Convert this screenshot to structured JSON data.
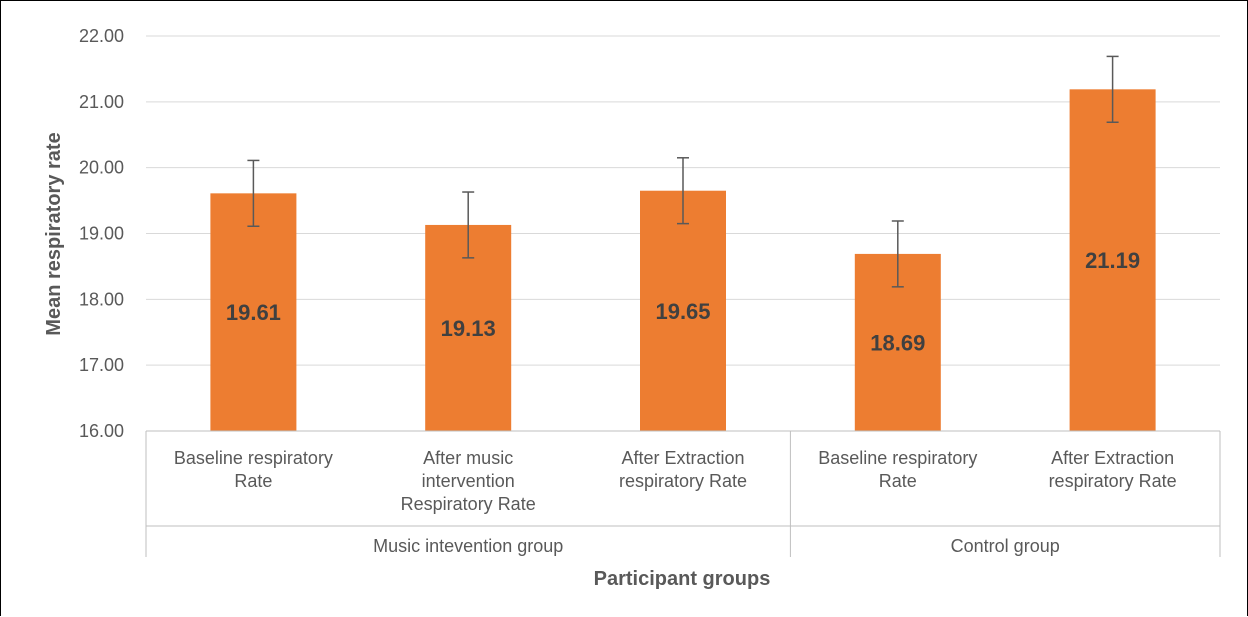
{
  "chart_data": {
    "type": "bar",
    "title": "",
    "xlabel": "Participant groups",
    "ylabel": "Mean respiratory rate",
    "ylim": [
      16,
      22
    ],
    "ytick_labels": [
      "16.00",
      "17.00",
      "18.00",
      "19.00",
      "20.00",
      "21.00",
      "22.00"
    ],
    "grid": true,
    "legend": "none",
    "bar_color": "#ED7D31",
    "groups": [
      {
        "name": "Music intevention group",
        "categories": [
          0,
          1,
          2
        ]
      },
      {
        "name": "Control group",
        "categories": [
          3,
          4
        ]
      }
    ],
    "categories": [
      [
        "Baseline respiratory",
        "Rate"
      ],
      [
        "After music",
        "intervention",
        "Respiratory Rate"
      ],
      [
        "After Extraction",
        "respiratory Rate"
      ],
      [
        "Baseline respiratory",
        "Rate"
      ],
      [
        "After Extraction",
        "respiratory Rate"
      ]
    ],
    "values": [
      19.61,
      19.13,
      19.65,
      18.69,
      21.19
    ],
    "data_labels": [
      "19.61",
      "19.13",
      "19.65",
      "18.69",
      "21.19"
    ],
    "error": [
      0.5,
      0.5,
      0.5,
      0.5,
      0.5
    ]
  }
}
